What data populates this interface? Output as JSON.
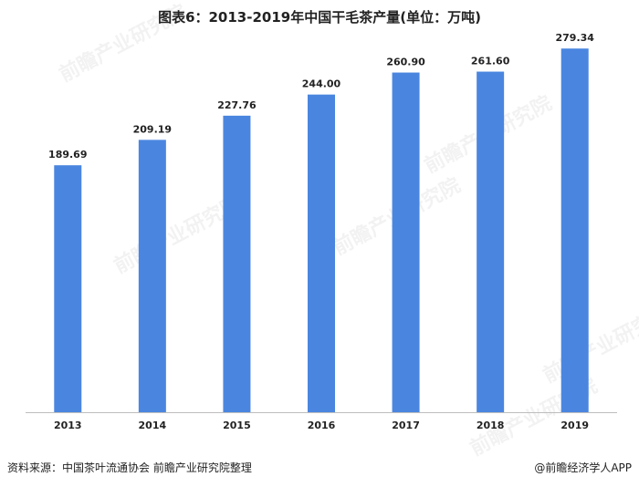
{
  "chart_data": {
    "type": "bar",
    "title": "图表6：2013-2019年中国干毛茶产量(单位：万吨)",
    "categories": [
      "2013",
      "2014",
      "2015",
      "2016",
      "2017",
      "2018",
      "2019"
    ],
    "values": [
      189.69,
      209.19,
      227.76,
      244.0,
      260.9,
      261.6,
      279.34
    ],
    "value_labels": [
      "189.69",
      "209.19",
      "227.76",
      "244.00",
      "260.90",
      "261.60",
      "279.34"
    ],
    "xlabel": "",
    "ylabel": "",
    "ylim": [
      0,
      290
    ],
    "grid": false,
    "bar_color": "#4a86e0"
  },
  "footer": {
    "source": "资料来源：中国茶叶流通协会 前瞻产业研究院整理",
    "brand": "@前瞻经济学人APP"
  },
  "watermark": {
    "text": "前瞻产业研究院"
  }
}
